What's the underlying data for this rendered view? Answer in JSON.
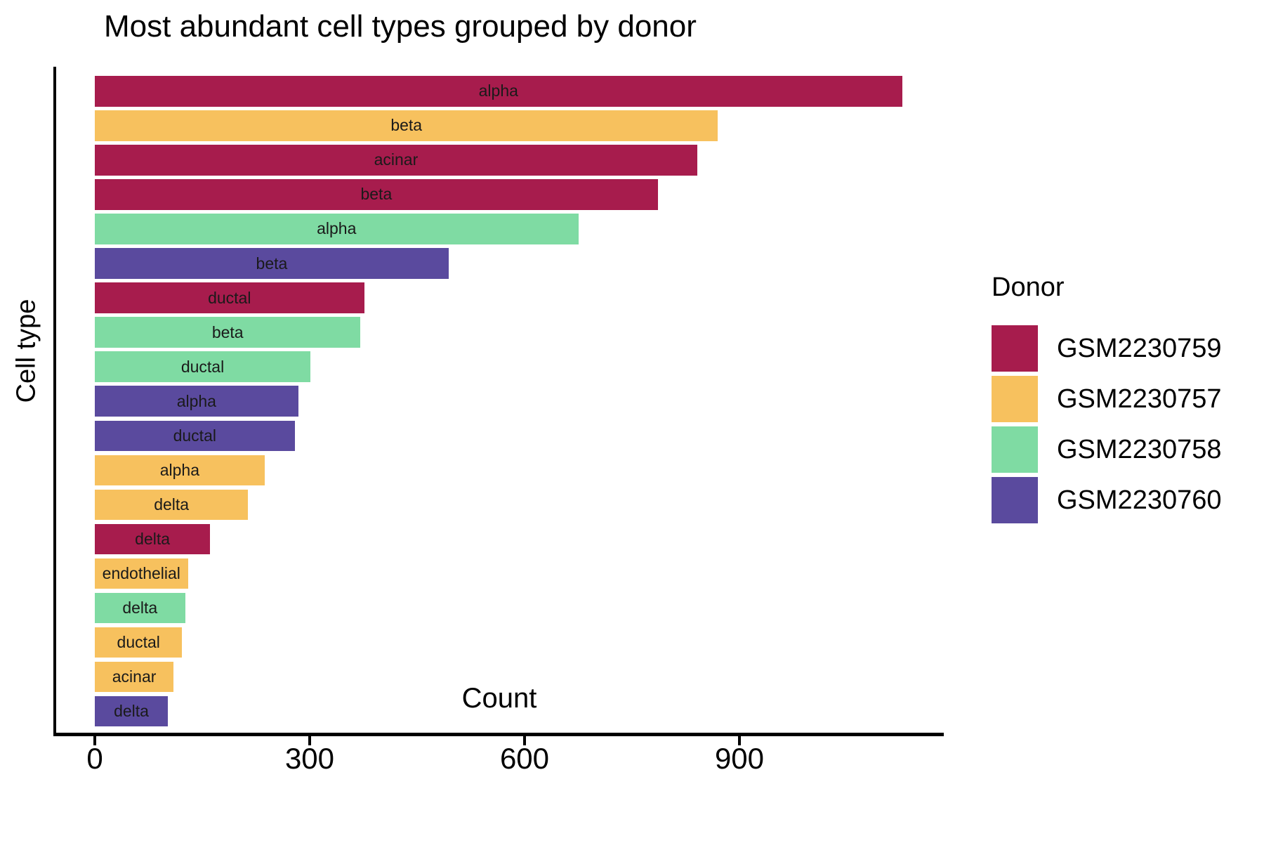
{
  "chart_data": {
    "type": "bar",
    "orientation": "horizontal",
    "title": "Most abundant cell types grouped by donor",
    "xlabel": "Count",
    "ylabel": "Cell type",
    "xlim": [
      0,
      1185
    ],
    "xticks": [
      0,
      300,
      600,
      900
    ],
    "grid": false,
    "legend": {
      "title": "Donor",
      "position": "right",
      "entries": [
        {
          "label": "GSM2230759",
          "color": "#A71C4D"
        },
        {
          "label": "GSM2230757",
          "color": "#F7C15E"
        },
        {
          "label": "GSM2230758",
          "color": "#7FDBA3"
        },
        {
          "label": "GSM2230760",
          "color": "#5A4A9E"
        }
      ]
    },
    "bars": [
      {
        "cell_type": "alpha",
        "donor": "GSM2230759",
        "count": 1127
      },
      {
        "cell_type": "beta",
        "donor": "GSM2230757",
        "count": 870
      },
      {
        "cell_type": "acinar",
        "donor": "GSM2230759",
        "count": 841
      },
      {
        "cell_type": "beta",
        "donor": "GSM2230759",
        "count": 786
      },
      {
        "cell_type": "alpha",
        "donor": "GSM2230758",
        "count": 675
      },
      {
        "cell_type": "beta",
        "donor": "GSM2230760",
        "count": 494
      },
      {
        "cell_type": "ductal",
        "donor": "GSM2230759",
        "count": 376
      },
      {
        "cell_type": "beta",
        "donor": "GSM2230758",
        "count": 371
      },
      {
        "cell_type": "ductal",
        "donor": "GSM2230758",
        "count": 301
      },
      {
        "cell_type": "alpha",
        "donor": "GSM2230760",
        "count": 284
      },
      {
        "cell_type": "ductal",
        "donor": "GSM2230760",
        "count": 279
      },
      {
        "cell_type": "alpha",
        "donor": "GSM2230757",
        "count": 237
      },
      {
        "cell_type": "delta",
        "donor": "GSM2230757",
        "count": 214
      },
      {
        "cell_type": "delta",
        "donor": "GSM2230759",
        "count": 161
      },
      {
        "cell_type": "endothelial",
        "donor": "GSM2230757",
        "count": 130
      },
      {
        "cell_type": "delta",
        "donor": "GSM2230758",
        "count": 126
      },
      {
        "cell_type": "ductal",
        "donor": "GSM2230757",
        "count": 122
      },
      {
        "cell_type": "acinar",
        "donor": "GSM2230757",
        "count": 110
      },
      {
        "cell_type": "delta",
        "donor": "GSM2230760",
        "count": 102
      }
    ]
  }
}
